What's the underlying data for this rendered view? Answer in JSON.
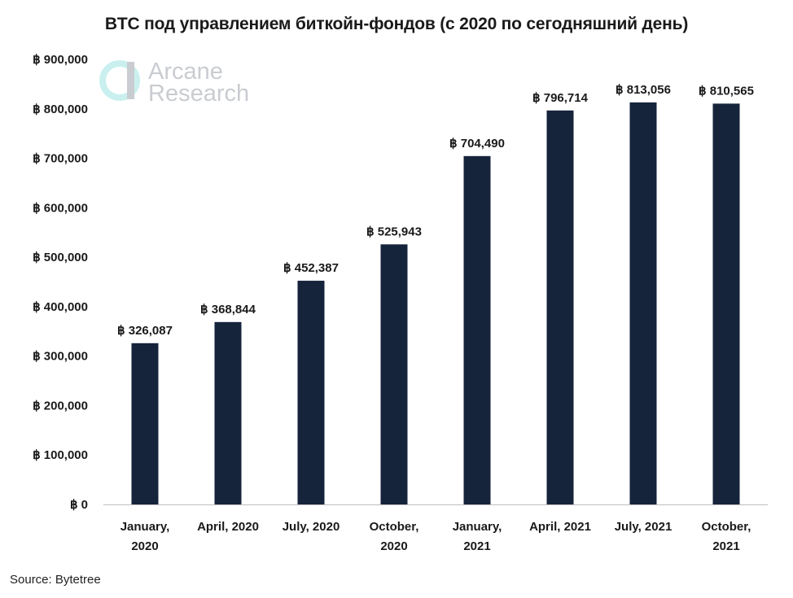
{
  "chart_data": {
    "type": "bar",
    "title": "BTC под управлением биткойн-фондов (с 2020 по сегодняшний день)",
    "categories": [
      [
        "January,",
        "2020"
      ],
      [
        "April, 2020"
      ],
      [
        "July, 2020"
      ],
      [
        "October,",
        "2020"
      ],
      [
        "January,",
        "2021"
      ],
      [
        "April, 2021"
      ],
      [
        "July, 2021"
      ],
      [
        "October,",
        "2021"
      ]
    ],
    "values": [
      326087,
      368844,
      452387,
      525943,
      704490,
      796714,
      813056,
      810565
    ],
    "data_labels": [
      "฿ 326,087",
      "฿ 368,844",
      "฿ 452,387",
      "฿ 525,943",
      "฿ 704,490",
      "฿ 796,714",
      "฿ 813,056",
      "฿ 810,565"
    ],
    "ylim": [
      0,
      900000
    ],
    "yticks": [
      0,
      100000,
      200000,
      300000,
      400000,
      500000,
      600000,
      700000,
      800000,
      900000
    ],
    "ytick_labels": [
      "฿ 0",
      "฿ 100,000",
      "฿ 200,000",
      "฿ 300,000",
      "฿ 400,000",
      "฿ 500,000",
      "฿ 600,000",
      "฿ 700,000",
      "฿ 800,000",
      "฿ 900,000"
    ],
    "xlabel": "",
    "ylabel": "",
    "grid": false,
    "bar_color": "#15233b"
  },
  "watermark": {
    "line1": "Arcane",
    "line2": "Research"
  },
  "source": "Source: Bytetree"
}
